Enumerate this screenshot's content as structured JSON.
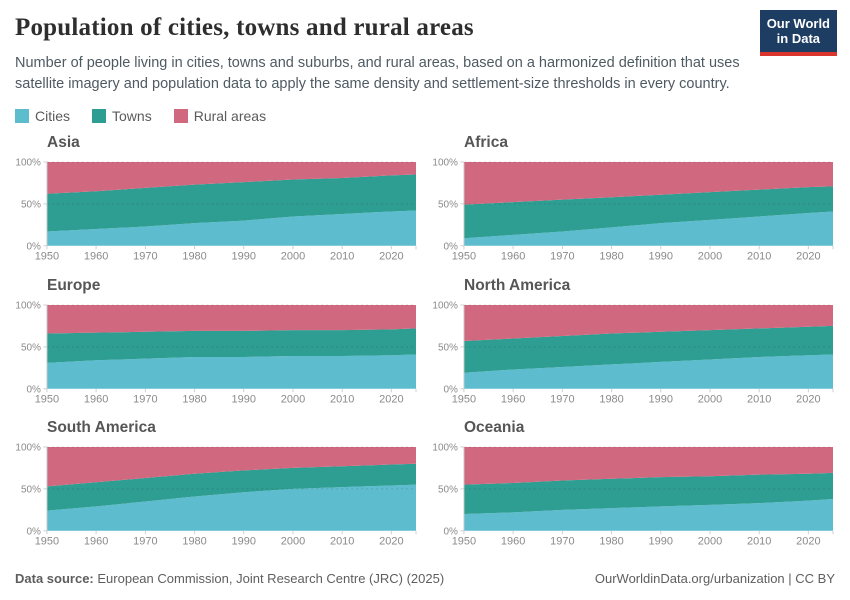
{
  "header": {
    "title": "Population of cities, towns and rural areas",
    "subtitle": "Number of people living in cities, towns and suburbs, and rural areas, based on a harmonized definition that uses satellite imagery and population data to apply the same density and settlement-size thresholds in every country.",
    "logo_line1": "Our World",
    "logo_line2": "in Data",
    "logo_background": "#1d3d63",
    "logo_underline": "#d9352c"
  },
  "legend": {
    "items": [
      {
        "label": "Cities",
        "color": "#5dbccd"
      },
      {
        "label": "Towns",
        "color": "#2e9d92"
      },
      {
        "label": "Rural areas",
        "color": "#d0697f"
      }
    ]
  },
  "axes": {
    "ylim": [
      0,
      100
    ],
    "yticks": [
      0,
      50,
      100
    ],
    "ytick_labels": [
      "0%",
      "50%",
      "100%"
    ],
    "xticks": [
      1950,
      1960,
      1970,
      1980,
      1990,
      2000,
      2010,
      2020
    ],
    "grid_dashed_at": [
      50,
      100
    ]
  },
  "chart_data": [
    {
      "type": "area",
      "stacked": true,
      "normalized": true,
      "title": "Asia",
      "x": [
        1950,
        1960,
        1970,
        1980,
        1990,
        2000,
        2010,
        2020,
        2025
      ],
      "ylim": [
        0,
        100
      ],
      "series": [
        {
          "name": "Cities",
          "values": [
            17,
            20,
            23,
            27,
            30,
            35,
            38,
            41,
            42
          ]
        },
        {
          "name": "Towns",
          "values": [
            45,
            45,
            46,
            46,
            46,
            44,
            43,
            43,
            43
          ]
        },
        {
          "name": "Rural areas",
          "values": [
            38,
            35,
            31,
            27,
            24,
            21,
            19,
            16,
            15
          ]
        }
      ]
    },
    {
      "type": "area",
      "stacked": true,
      "normalized": true,
      "title": "Africa",
      "x": [
        1950,
        1960,
        1970,
        1980,
        1990,
        2000,
        2010,
        2020,
        2025
      ],
      "ylim": [
        0,
        100
      ],
      "series": [
        {
          "name": "Cities",
          "values": [
            9,
            13,
            17,
            22,
            27,
            31,
            35,
            39,
            41
          ]
        },
        {
          "name": "Towns",
          "values": [
            40,
            39,
            38,
            36,
            34,
            33,
            32,
            31,
            30
          ]
        },
        {
          "name": "Rural areas",
          "values": [
            51,
            48,
            45,
            42,
            39,
            36,
            33,
            30,
            29
          ]
        }
      ]
    },
    {
      "type": "area",
      "stacked": true,
      "normalized": true,
      "title": "Europe",
      "x": [
        1950,
        1960,
        1970,
        1980,
        1990,
        2000,
        2010,
        2020,
        2025
      ],
      "ylim": [
        0,
        100
      ],
      "series": [
        {
          "name": "Cities",
          "values": [
            31,
            34,
            36,
            38,
            38,
            39,
            39,
            40,
            41
          ]
        },
        {
          "name": "Towns",
          "values": [
            35,
            33,
            32,
            31,
            31,
            31,
            31,
            31,
            31
          ]
        },
        {
          "name": "Rural areas",
          "values": [
            34,
            33,
            32,
            31,
            31,
            30,
            30,
            29,
            28
          ]
        }
      ]
    },
    {
      "type": "area",
      "stacked": true,
      "normalized": true,
      "title": "North America",
      "x": [
        1950,
        1960,
        1970,
        1980,
        1990,
        2000,
        2010,
        2020,
        2025
      ],
      "ylim": [
        0,
        100
      ],
      "series": [
        {
          "name": "Cities",
          "values": [
            19,
            23,
            26,
            29,
            32,
            35,
            38,
            40,
            41
          ]
        },
        {
          "name": "Towns",
          "values": [
            38,
            37,
            37,
            37,
            36,
            35,
            34,
            34,
            34
          ]
        },
        {
          "name": "Rural areas",
          "values": [
            43,
            40,
            37,
            34,
            32,
            30,
            28,
            26,
            25
          ]
        }
      ]
    },
    {
      "type": "area",
      "stacked": true,
      "normalized": true,
      "title": "South America",
      "x": [
        1950,
        1960,
        1970,
        1980,
        1990,
        2000,
        2010,
        2020,
        2025
      ],
      "ylim": [
        0,
        100
      ],
      "series": [
        {
          "name": "Cities",
          "values": [
            24,
            29,
            35,
            41,
            46,
            50,
            52,
            54,
            55
          ]
        },
        {
          "name": "Towns",
          "values": [
            29,
            29,
            28,
            27,
            26,
            25,
            25,
            25,
            25
          ]
        },
        {
          "name": "Rural areas",
          "values": [
            47,
            42,
            37,
            32,
            28,
            25,
            23,
            21,
            20
          ]
        }
      ]
    },
    {
      "type": "area",
      "stacked": true,
      "normalized": true,
      "title": "Oceania",
      "x": [
        1950,
        1960,
        1970,
        1980,
        1990,
        2000,
        2010,
        2020,
        2025
      ],
      "ylim": [
        0,
        100
      ],
      "series": [
        {
          "name": "Cities",
          "values": [
            20,
            22,
            25,
            27,
            29,
            31,
            33,
            36,
            38
          ]
        },
        {
          "name": "Towns",
          "values": [
            35,
            35,
            35,
            35,
            35,
            34,
            34,
            32,
            31
          ]
        },
        {
          "name": "Rural areas",
          "values": [
            45,
            43,
            40,
            38,
            36,
            35,
            33,
            32,
            31
          ]
        }
      ]
    }
  ],
  "footer": {
    "source_label": "Data source:",
    "source_value": "European Commission, Joint Research Centre (JRC) (2025)",
    "credit": "OurWorldinData.org/urbanization | CC BY"
  }
}
